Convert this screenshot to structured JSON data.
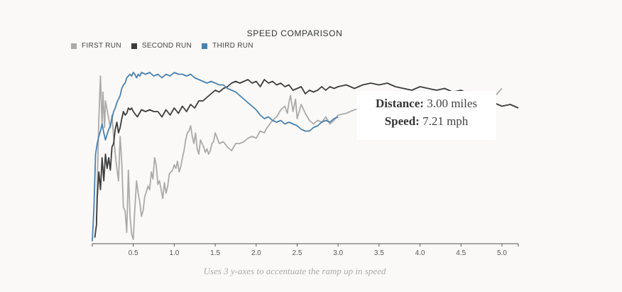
{
  "chart_data": {
    "type": "line",
    "title": "SPEED COMPARISON",
    "xlim": [
      0,
      5.2
    ],
    "x_ticks": [
      "0.5",
      "1.0",
      "1.5",
      "2.0",
      "2.5",
      "3.0",
      "3.5",
      "4.0",
      "4.5",
      "5.0"
    ],
    "y_axes": 3,
    "legend_position": "top-left",
    "series": [
      {
        "name": "FIRST RUN",
        "color": "#aaaaaa",
        "x": [
          0.05,
          0.08,
          0.1,
          0.12,
          0.13,
          0.15,
          0.16,
          0.18,
          0.2,
          0.22,
          0.24,
          0.26,
          0.28,
          0.3,
          0.32,
          0.34,
          0.36,
          0.38,
          0.4,
          0.42,
          0.44,
          0.46,
          0.48,
          0.5,
          0.52,
          0.54,
          0.56,
          0.58,
          0.6,
          0.62,
          0.64,
          0.66,
          0.68,
          0.7,
          0.72,
          0.74,
          0.76,
          0.78,
          0.8,
          0.82,
          0.84,
          0.86,
          0.88,
          0.9,
          0.92,
          0.94,
          0.96,
          0.98,
          1.0,
          1.02,
          1.04,
          1.06,
          1.08,
          1.1,
          1.12,
          1.14,
          1.16,
          1.18,
          1.2,
          1.22,
          1.24,
          1.26,
          1.28,
          1.3,
          1.32,
          1.34,
          1.36,
          1.38,
          1.4,
          1.42,
          1.44,
          1.46,
          1.48,
          1.5,
          1.55,
          1.6,
          1.65,
          1.7,
          1.75,
          1.8,
          1.85,
          1.9,
          1.95,
          2.0,
          2.05,
          2.1,
          2.12,
          2.15,
          2.2,
          2.25,
          2.3,
          2.35,
          2.38,
          2.4,
          2.42,
          2.45,
          2.48,
          2.5,
          2.55,
          2.6,
          2.65,
          2.7,
          2.75,
          2.8,
          2.85,
          2.9,
          2.95,
          3.0,
          3.1,
          3.2,
          3.3,
          3.4,
          3.5,
          3.6,
          3.7,
          3.8,
          3.9,
          4.0,
          4.1,
          4.2,
          4.3,
          4.4,
          4.5,
          4.6,
          4.7,
          4.8,
          4.9,
          5.0
        ],
        "y": [
          1.2,
          7.0,
          9.4,
          6.5,
          8.5,
          6.5,
          8.0,
          7.5,
          7.0,
          6.5,
          7.2,
          6.0,
          5.0,
          4.2,
          3.5,
          6.0,
          4.5,
          2.0,
          1.8,
          0.6,
          4.1,
          1.5,
          0.5,
          0.2,
          2.0,
          3.5,
          2.8,
          2.3,
          1.5,
          1.8,
          2.6,
          2.9,
          3.2,
          3.0,
          4.0,
          3.6,
          4.8,
          4.4,
          3.3,
          3.5,
          3.0,
          2.5,
          3.4,
          2.8,
          3.2,
          3.9,
          4.0,
          4.1,
          4.4,
          4.2,
          4.6,
          4.0,
          4.3,
          4.8,
          5.2,
          5.8,
          6.2,
          6.3,
          6.6,
          6.0,
          5.6,
          6.2,
          5.3,
          5.0,
          5.8,
          5.6,
          5.4,
          5.1,
          5.3,
          5.0,
          5.2,
          5.6,
          5.7,
          6.2,
          5.6,
          5.7,
          5.4,
          5.2,
          5.6,
          5.6,
          5.7,
          5.9,
          6.0,
          5.9,
          6.3,
          6.2,
          6.4,
          6.6,
          6.9,
          7.1,
          7.5,
          7.7,
          7.3,
          7.9,
          8.3,
          7.4,
          8.1,
          7.0,
          7.8,
          7.3,
          6.9,
          6.7,
          6.9,
          6.8,
          7.1,
          6.7,
          6.9,
          7.2,
          7.3,
          7.5,
          7.6,
          7.5,
          7.4,
          7.3,
          7.3,
          7.2,
          7.3,
          7.1,
          7.2,
          7.4,
          7.3,
          7.2,
          7.5,
          7.6,
          7.8,
          8.0,
          8.2,
          8.7
        ]
      },
      {
        "name": "SECOND RUN",
        "color": "#3c3c3c",
        "x": [
          0.03,
          0.05,
          0.06,
          0.08,
          0.1,
          0.12,
          0.14,
          0.16,
          0.18,
          0.2,
          0.22,
          0.24,
          0.26,
          0.28,
          0.3,
          0.32,
          0.34,
          0.36,
          0.38,
          0.4,
          0.42,
          0.44,
          0.46,
          0.48,
          0.5,
          0.55,
          0.6,
          0.65,
          0.7,
          0.75,
          0.8,
          0.85,
          0.9,
          0.95,
          1.0,
          1.05,
          1.1,
          1.15,
          1.2,
          1.25,
          1.3,
          1.35,
          1.4,
          1.45,
          1.5,
          1.55,
          1.6,
          1.65,
          1.7,
          1.75,
          1.8,
          1.85,
          1.9,
          1.95,
          2.0,
          2.05,
          2.1,
          2.15,
          2.2,
          2.25,
          2.3,
          2.35,
          2.4,
          2.45,
          2.5,
          2.55,
          2.6,
          2.65,
          2.7,
          2.75,
          2.8,
          2.85,
          2.9,
          2.95,
          3.0,
          3.1,
          3.2,
          3.3,
          3.4,
          3.5,
          3.6,
          3.7,
          3.8,
          3.9,
          4.0,
          4.1,
          4.2,
          4.3,
          4.4,
          4.5,
          4.6,
          4.7,
          4.8,
          4.9,
          5.0,
          5.1,
          5.2
        ],
        "y": [
          0.3,
          1.0,
          2.5,
          4.0,
          3.0,
          4.8,
          3.5,
          5.0,
          4.2,
          4.8,
          4.1,
          5.4,
          5.6,
          6.4,
          6.8,
          6.2,
          6.5,
          7.0,
          7.4,
          7.2,
          7.3,
          7.6,
          7.5,
          7.6,
          7.4,
          7.1,
          7.5,
          7.4,
          7.5,
          7.4,
          7.4,
          7.1,
          7.5,
          7.2,
          7.6,
          7.3,
          7.7,
          7.4,
          7.8,
          7.6,
          8.0,
          8.0,
          8.2,
          8.4,
          8.6,
          8.5,
          8.7,
          8.8,
          9.0,
          9.1,
          9.0,
          9.1,
          9.2,
          9.0,
          9.1,
          8.8,
          9.2,
          9.0,
          9.1,
          8.9,
          9.0,
          8.8,
          8.9,
          8.6,
          8.7,
          8.8,
          8.4,
          8.6,
          8.5,
          8.6,
          8.8,
          8.6,
          8.8,
          8.7,
          8.8,
          8.9,
          8.7,
          8.9,
          9.0,
          8.9,
          9.0,
          8.8,
          8.7,
          8.6,
          8.8,
          8.7,
          8.6,
          8.7,
          8.5,
          8.6,
          8.4,
          8.2,
          8.0,
          7.9,
          7.7,
          7.8,
          7.6
        ]
      },
      {
        "name": "THIRD RUN",
        "color": "#4a82b0",
        "x": [
          0.0,
          0.02,
          0.04,
          0.06,
          0.08,
          0.1,
          0.12,
          0.14,
          0.16,
          0.18,
          0.2,
          0.22,
          0.24,
          0.26,
          0.28,
          0.3,
          0.32,
          0.34,
          0.36,
          0.38,
          0.4,
          0.42,
          0.44,
          0.46,
          0.48,
          0.5,
          0.52,
          0.54,
          0.56,
          0.58,
          0.6,
          0.65,
          0.7,
          0.75,
          0.8,
          0.85,
          0.9,
          0.95,
          1.0,
          1.05,
          1.1,
          1.15,
          1.2,
          1.25,
          1.3,
          1.35,
          1.4,
          1.45,
          1.5,
          1.55,
          1.6,
          1.65,
          1.7,
          1.75,
          1.8,
          1.85,
          1.9,
          1.95,
          2.0,
          2.05,
          2.1,
          2.15,
          2.2,
          2.25,
          2.3,
          2.35,
          2.4,
          2.45,
          2.5,
          2.55,
          2.6,
          2.65,
          2.7,
          2.75,
          2.8,
          2.85,
          2.9,
          2.95,
          3.0
        ],
        "y": [
          0.1,
          2.0,
          5.0,
          5.6,
          6.0,
          6.3,
          6.7,
          6.2,
          5.8,
          6.1,
          6.4,
          6.6,
          7.0,
          7.4,
          7.6,
          7.9,
          8.1,
          8.3,
          8.7,
          8.9,
          9.0,
          9.3,
          9.4,
          9.5,
          9.4,
          9.6,
          9.5,
          9.3,
          9.5,
          9.4,
          9.6,
          9.5,
          9.6,
          9.4,
          9.5,
          9.3,
          9.5,
          9.4,
          9.6,
          9.5,
          9.5,
          9.4,
          9.5,
          9.3,
          9.2,
          9.1,
          9.0,
          9.1,
          9.0,
          8.9,
          8.9,
          8.7,
          8.6,
          8.5,
          8.3,
          8.1,
          7.9,
          7.7,
          7.5,
          7.2,
          7.0,
          7.1,
          6.9,
          6.8,
          6.9,
          6.7,
          6.8,
          6.7,
          6.6,
          6.4,
          6.3,
          6.3,
          6.5,
          6.6,
          6.8,
          6.9,
          6.8,
          7.0,
          7.1
        ]
      }
    ]
  },
  "tooltip": {
    "distance_label": "Distance:",
    "distance_value": "3.00 miles",
    "speed_label": "Speed:",
    "speed_value": "7.21 mph"
  },
  "caption": "Uses 3 y-axes to accentuate the ramp up in speed"
}
